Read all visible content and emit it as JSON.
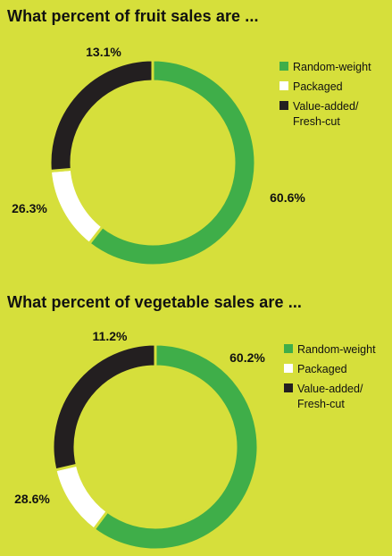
{
  "colors": {
    "background": "#d6df3b",
    "random_weight": "#3fae49",
    "packaged": "#ffffff",
    "value_added": "#231f20"
  },
  "chart_data": [
    {
      "type": "pie",
      "title": "What percent of fruit sales are ...",
      "categories": [
        "Random-weight",
        "Packaged",
        "Value-added/\nFresh-cut"
      ],
      "values": [
        60.6,
        13.1,
        26.3
      ],
      "value_labels": [
        "60.6%",
        "13.1%",
        "26.3%"
      ],
      "legend_position": "right"
    },
    {
      "type": "pie",
      "title": "What percent of vegetable sales are ...",
      "categories": [
        "Random-weight",
        "Packaged",
        "Value-added/\nFresh-cut"
      ],
      "values": [
        60.2,
        11.2,
        28.6
      ],
      "value_labels": [
        "60.2%",
        "11.2%",
        "28.6%"
      ],
      "legend_position": "right"
    }
  ]
}
